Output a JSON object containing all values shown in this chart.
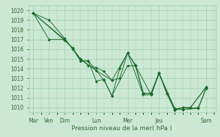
{
  "xlabel": "Pression niveau de la mer( hPa )",
  "ylim": [
    1009.5,
    1020.5
  ],
  "yticks": [
    1010,
    1011,
    1012,
    1013,
    1014,
    1015,
    1016,
    1017,
    1018,
    1019,
    1020
  ],
  "bg_color": "#cce8d4",
  "grid_color": "#99ccaa",
  "line_color": "#1a6b2a",
  "marker_color": "#1a6b2a",
  "lines": [
    [
      0.0,
      1019.7,
      1.0,
      1019.0,
      2.0,
      1017.1,
      2.5,
      1016.0,
      3.0,
      1015.0,
      3.5,
      1014.3,
      4.0,
      1014.1,
      4.5,
      1013.7,
      5.0,
      1012.8,
      5.5,
      1013.0,
      6.0,
      1015.6,
      6.5,
      1014.4,
      7.0,
      1011.5,
      7.5,
      1011.4,
      8.0,
      1013.5,
      8.5,
      1011.4,
      9.0,
      1009.7,
      9.5,
      1010.0,
      10.0,
      1010.0,
      11.0,
      1012.1
    ],
    [
      0.0,
      1019.7,
      2.0,
      1016.9,
      2.5,
      1016.1,
      3.0,
      1014.8,
      3.5,
      1014.8,
      4.0,
      1012.7,
      4.5,
      1012.9,
      5.0,
      1011.2,
      6.0,
      1014.3,
      6.5,
      1014.3,
      7.0,
      1011.4,
      7.5,
      1011.5,
      8.0,
      1013.6,
      8.5,
      1011.5,
      9.0,
      1009.8,
      9.5,
      1010.0,
      10.0,
      1010.0,
      11.0,
      1012.1
    ],
    [
      0.0,
      1019.7,
      1.0,
      1017.0,
      2.0,
      1017.0,
      2.5,
      1016.1,
      3.0,
      1015.0,
      4.0,
      1013.8,
      5.0,
      1012.8,
      6.0,
      1015.6,
      6.5,
      1014.3,
      7.5,
      1011.3,
      8.0,
      1013.5,
      9.0,
      1009.8,
      9.5,
      1009.8,
      10.5,
      1010.0,
      11.0,
      1012.0
    ],
    [
      0.0,
      1019.7,
      2.0,
      1017.0,
      2.5,
      1016.1,
      3.0,
      1014.8,
      3.5,
      1014.8,
      4.5,
      1012.8,
      5.0,
      1011.2,
      5.5,
      1014.0,
      6.0,
      1015.6,
      7.0,
      1011.3,
      7.5,
      1011.3,
      8.0,
      1013.5,
      9.0,
      1009.9,
      9.5,
      1009.8,
      10.5,
      1009.9,
      11.0,
      1012.0
    ]
  ],
  "xlim": [
    -0.3,
    11.6
  ],
  "tick_positions": [
    0,
    1,
    2,
    4,
    6,
    8,
    11
  ],
  "tick_labels": [
    "Mar",
    "Ven",
    "Dim",
    "Lun",
    "Mer",
    "Jeu",
    "Sam"
  ]
}
